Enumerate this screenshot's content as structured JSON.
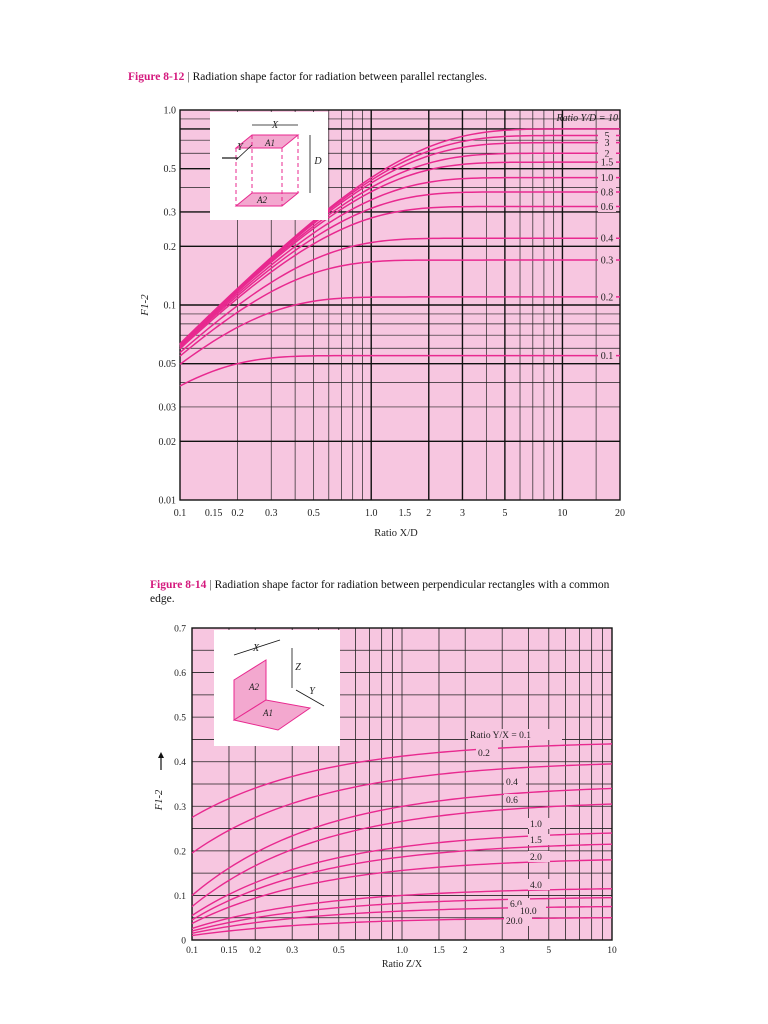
{
  "figures": [
    {
      "number": "Figure 8-12",
      "text": "Radiation shape factor for radiation between parallel rectangles."
    },
    {
      "number": "Figure 8-14",
      "text": "Radiation shape factor for radiation between perpendicular rectangles with a common edge."
    }
  ],
  "chart_data": [
    {
      "type": "line",
      "xscale": "log",
      "yscale": "log",
      "xlabel": "Ratio X/D",
      "ylabel": "F1-2",
      "xlim": [
        0.1,
        20
      ],
      "ylim": [
        0.01,
        1.0
      ],
      "grid": true,
      "xticks": [
        {
          "v": 0.1,
          "label": "0.1"
        },
        {
          "v": 0.15,
          "label": "0.15"
        },
        {
          "v": 0.2,
          "label": "0.2"
        },
        {
          "v": 0.3,
          "label": "0.3"
        },
        {
          "v": 0.5,
          "label": "0.5"
        },
        {
          "v": 1.0,
          "label": "1.0"
        },
        {
          "v": 1.5,
          "label": "1.5"
        },
        {
          "v": 2,
          "label": "2"
        },
        {
          "v": 3,
          "label": "3"
        },
        {
          "v": 5,
          "label": "5"
        },
        {
          "v": 10,
          "label": "10"
        },
        {
          "v": 20,
          "label": "20"
        }
      ],
      "yticks": [
        {
          "v": 0.01,
          "label": "0.01"
        },
        {
          "v": 0.02,
          "label": "0.02"
        },
        {
          "v": 0.03,
          "label": "0.03"
        },
        {
          "v": 0.05,
          "label": "0.05"
        },
        {
          "v": 0.1,
          "label": "0.1"
        },
        {
          "v": 0.2,
          "label": "0.2"
        },
        {
          "v": 0.3,
          "label": "0.3"
        },
        {
          "v": 0.5,
          "label": "0.5"
        },
        {
          "v": 1.0,
          "label": "1.0"
        }
      ],
      "legend_title": "Ratio Y/D = 10",
      "inset_labels": {
        "x": "X",
        "y": "Y",
        "d": "D",
        "a1": "A1",
        "a2": "A2"
      },
      "series": [
        {
          "label": "10",
          "y_end": 0.8
        },
        {
          "label": "5",
          "y_end": 0.74
        },
        {
          "label": "3",
          "y_end": 0.68
        },
        {
          "label": "2",
          "y_end": 0.6
        },
        {
          "label": "1.5",
          "y_end": 0.54
        },
        {
          "label": "1.0",
          "y_end": 0.45
        },
        {
          "label": "0.8",
          "y_end": 0.38
        },
        {
          "label": "0.6",
          "y_end": 0.32
        },
        {
          "label": "0.4",
          "y_end": 0.22
        },
        {
          "label": "0.3",
          "y_end": 0.17
        },
        {
          "label": "0.2",
          "y_end": 0.11
        },
        {
          "label": "0.1",
          "y_end": 0.055
        }
      ]
    },
    {
      "type": "line",
      "xscale": "log",
      "yscale": "linear",
      "xlabel": "Ratio Z/X",
      "ylabel": "F1-2",
      "xlim": [
        0.1,
        10
      ],
      "ylim": [
        0,
        0.7
      ],
      "grid": true,
      "xticks": [
        {
          "v": 0.1,
          "label": "0.1"
        },
        {
          "v": 0.15,
          "label": "0.15"
        },
        {
          "v": 0.2,
          "label": "0.2"
        },
        {
          "v": 0.3,
          "label": "0.3"
        },
        {
          "v": 0.5,
          "label": "0.5"
        },
        {
          "v": 1.0,
          "label": "1.0"
        },
        {
          "v": 1.5,
          "label": "1.5"
        },
        {
          "v": 2,
          "label": "2"
        },
        {
          "v": 3,
          "label": "3"
        },
        {
          "v": 5,
          "label": "5"
        },
        {
          "v": 10,
          "label": "10"
        }
      ],
      "yticks": [
        {
          "v": 0,
          "label": "0"
        },
        {
          "v": 0.1,
          "label": "0.1"
        },
        {
          "v": 0.2,
          "label": "0.2"
        },
        {
          "v": 0.3,
          "label": "0.3"
        },
        {
          "v": 0.4,
          "label": "0.4"
        },
        {
          "v": 0.5,
          "label": "0.5"
        },
        {
          "v": 0.6,
          "label": "0.6"
        },
        {
          "v": 0.7,
          "label": "0.7"
        }
      ],
      "inset_labels": {
        "x": "X",
        "y": "Y",
        "z": "Z",
        "a1": "A1",
        "a2": "A2"
      },
      "series": [
        {
          "label": "Ratio Y/X = 0.1",
          "y_start": 0.275,
          "y_end": 0.44
        },
        {
          "label": "0.2",
          "y_start": 0.195,
          "y_end": 0.395
        },
        {
          "label": "0.4",
          "y_start": 0.1,
          "y_end": 0.34
        },
        {
          "label": "0.6",
          "y_start": 0.075,
          "y_end": 0.305
        },
        {
          "label": "1.0",
          "y_start": 0.055,
          "y_end": 0.24
        },
        {
          "label": "1.5",
          "y_start": 0.045,
          "y_end": 0.215
        },
        {
          "label": "2.0",
          "y_start": 0.037,
          "y_end": 0.18
        },
        {
          "label": "4.0",
          "y_start": 0.026,
          "y_end": 0.115
        },
        {
          "label": "6.0",
          "y_start": 0.02,
          "y_end": 0.095
        },
        {
          "label": "10.0",
          "y_start": 0.015,
          "y_end": 0.075
        },
        {
          "label": "20.0",
          "y_start": 0.01,
          "y_end": 0.05
        }
      ]
    }
  ]
}
